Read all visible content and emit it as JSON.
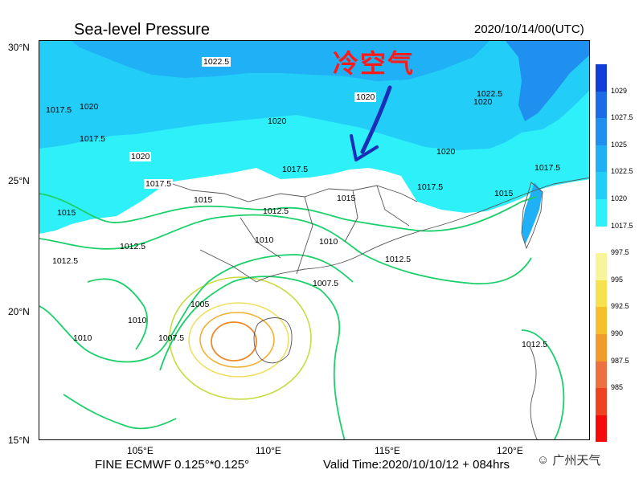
{
  "header": {
    "title": "Sea-level Pressure",
    "valid_date": "2020/10/14/00(UTC)"
  },
  "annotation": {
    "text": "冷空气"
  },
  "axes": {
    "lat_labels": [
      "30°N",
      "25°N",
      "20°N",
      "15°N"
    ],
    "lon_labels": [
      "105°E",
      "110°E",
      "115°E",
      "120°E"
    ]
  },
  "contour_labels": [
    "1022.5",
    "1020",
    "1020",
    "1020",
    "1020",
    "1020",
    "1020",
    "1022.5",
    "1017.5",
    "1017.5",
    "1017.5",
    "1017.5",
    "1017.5",
    "1017.5",
    "1015",
    "1015",
    "1015",
    "1015",
    "1012.5",
    "1012.5",
    "1012.5",
    "1012.5",
    "1012.5",
    "1010",
    "1010",
    "1010",
    "1010",
    "1007.5",
    "1007.5",
    "1005"
  ],
  "colorbar": {
    "labels": [
      "1029",
      "1027.5",
      "1025",
      "1022.5",
      "1020",
      "1017.5",
      "997.5",
      "995",
      "992.5",
      "990",
      "987.5",
      "985"
    ],
    "colors": [
      "#0f3fd8",
      "#1c6ce8",
      "#1f8ff0",
      "#20b0f5",
      "#22cdf8",
      "#2ef0f8",
      "#ffffff",
      "#f8f49a",
      "#f6e24c",
      "#f6c02a",
      "#f29a2a",
      "#ec7040",
      "#ee4222",
      "#f60a0a"
    ]
  },
  "footer": {
    "model": "FINE ECMWF 0.125°*0.125°",
    "valid_time": "Valid Time:2020/10/10/12 + 084hrs"
  },
  "watermark": {
    "text": "广州天气",
    "icon": "wechat-icon"
  }
}
